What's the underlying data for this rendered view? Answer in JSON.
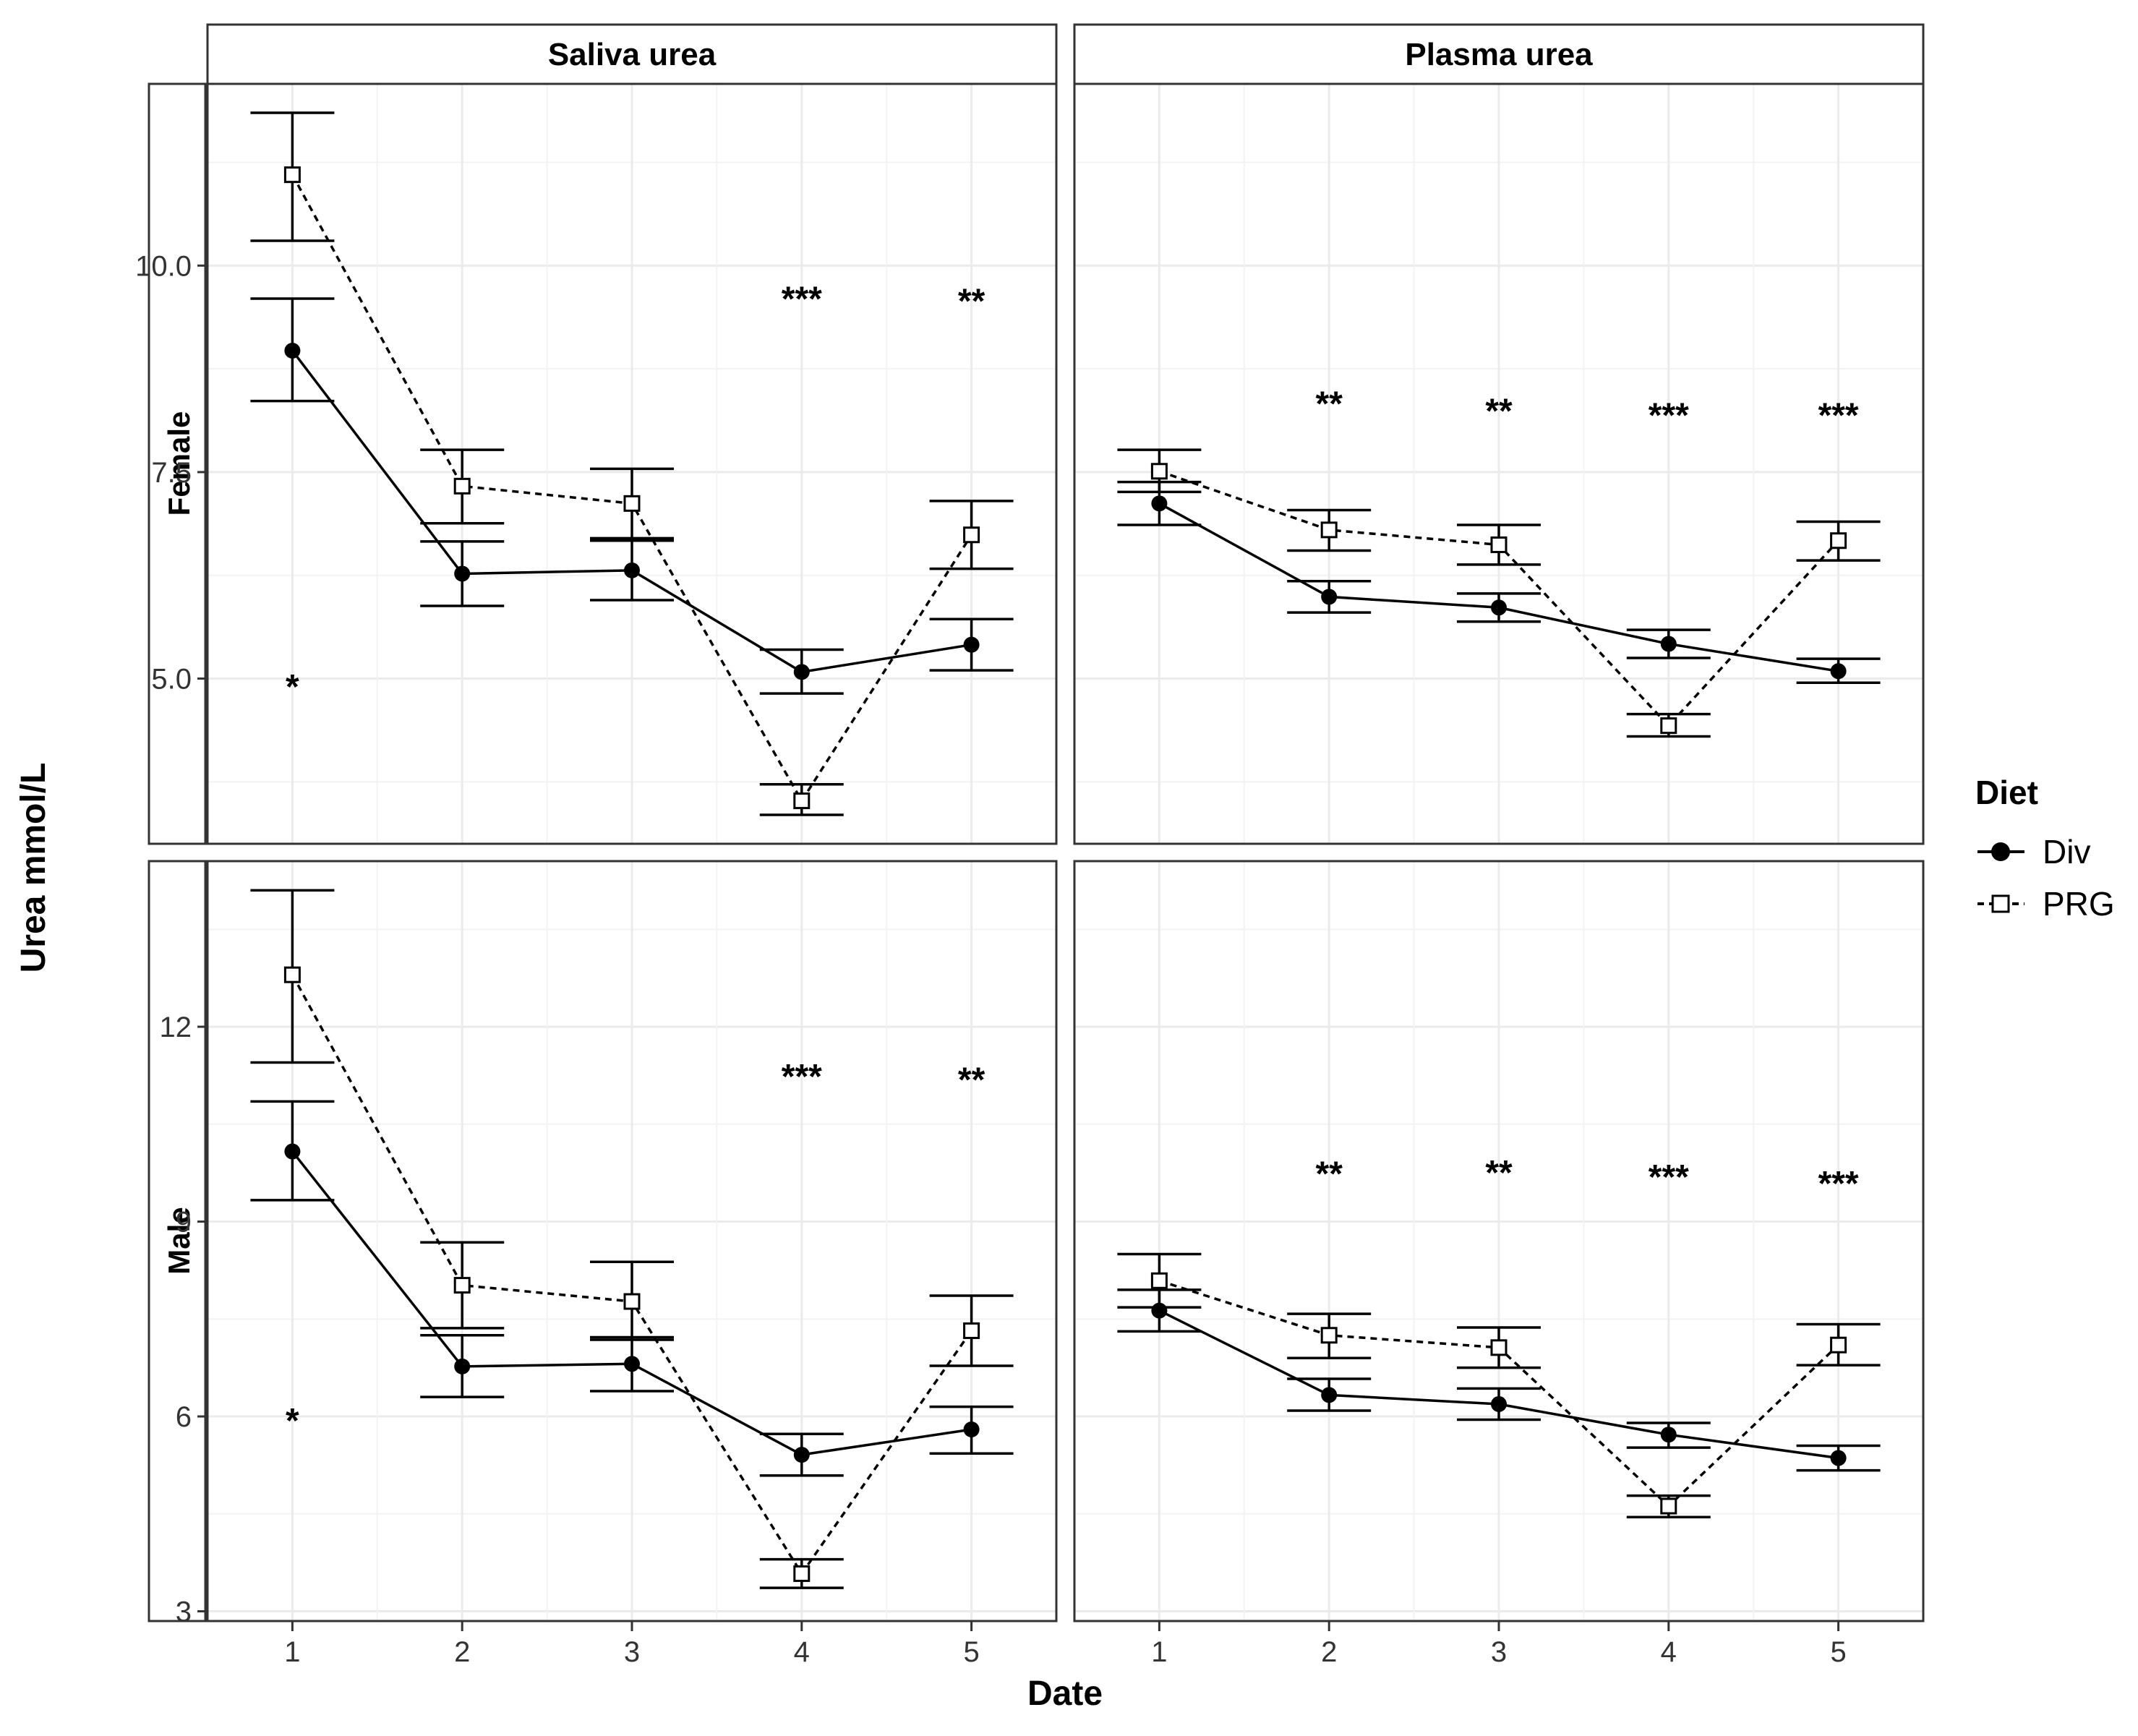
{
  "chart_data": {
    "type": "line",
    "layout": "facet-grid",
    "xlabel": "Date",
    "ylabel": "Urea mmol/L",
    "x_categories": [
      "1",
      "2",
      "3",
      "4",
      "5"
    ],
    "column_facets": [
      "Saliva urea",
      "Plasma urea"
    ],
    "row_facets": [
      "Female",
      "Male"
    ],
    "legend": {
      "title": "Diet",
      "position": "right",
      "entries": [
        {
          "name": "Div",
          "marker": "filled-circle",
          "line": "solid"
        },
        {
          "name": "PRG",
          "marker": "open-square",
          "line": "dashed"
        }
      ]
    },
    "rows": [
      {
        "name": "Female",
        "ylim": [
          3.0,
          12.2
        ],
        "yticks": [
          5.0,
          7.5,
          10.0
        ],
        "ytick_labels": [
          "5.0",
          "7.5",
          "10.0"
        ]
      },
      {
        "name": "Male",
        "ylim": [
          2.85,
          14.55
        ],
        "yticks": [
          3,
          6,
          9,
          12
        ],
        "ytick_labels": [
          "3",
          "6",
          "9",
          "12"
        ]
      }
    ],
    "panels": [
      {
        "row": "Female",
        "column": "Saliva urea",
        "series": [
          {
            "name": "Div",
            "mean": [
              8.97,
              6.27,
              6.31,
              5.08,
              5.41
            ],
            "lower": [
              8.36,
              5.88,
              5.95,
              4.82,
              5.1
            ],
            "upper": [
              9.6,
              6.66,
              6.67,
              5.35,
              5.72
            ]
          },
          {
            "name": "PRG",
            "mean": [
              11.1,
              7.33,
              7.12,
              3.52,
              6.74
            ],
            "lower": [
              10.3,
              6.88,
              6.7,
              3.35,
              6.33
            ],
            "upper": [
              11.85,
              7.77,
              7.54,
              3.72,
              7.15
            ]
          }
        ],
        "significance": [
          {
            "x": "1",
            "label": "*",
            "y": 4.95
          },
          {
            "x": "4",
            "label": "***",
            "y": 9.65
          },
          {
            "x": "5",
            "label": "**",
            "y": 9.62
          }
        ]
      },
      {
        "row": "Female",
        "column": "Plasma urea",
        "series": [
          {
            "name": "Div",
            "mean": [
              7.12,
              5.99,
              5.86,
              5.42,
              5.09
            ],
            "lower": [
              6.86,
              5.8,
              5.69,
              5.25,
              4.95
            ],
            "upper": [
              7.38,
              6.18,
              6.03,
              5.59,
              5.24
            ]
          },
          {
            "name": "PRG",
            "mean": [
              7.51,
              6.8,
              6.62,
              4.43,
              6.67
            ],
            "lower": [
              7.26,
              6.55,
              6.38,
              4.3,
              6.43
            ],
            "upper": [
              7.77,
              7.04,
              6.86,
              4.57,
              6.9
            ]
          }
        ],
        "significance": [
          {
            "x": "2",
            "label": "**",
            "y": 8.38
          },
          {
            "x": "3",
            "label": "**",
            "y": 8.29
          },
          {
            "x": "4",
            "label": "***",
            "y": 8.24
          },
          {
            "x": "5",
            "label": "***",
            "y": 8.24
          }
        ]
      },
      {
        "row": "Male",
        "column": "Saliva urea",
        "series": [
          {
            "name": "Div",
            "mean": [
              10.08,
              6.77,
              6.81,
              5.41,
              5.8
            ],
            "lower": [
              9.33,
              6.3,
              6.39,
              5.09,
              5.43
            ],
            "upper": [
              10.85,
              7.25,
              7.22,
              5.73,
              6.15
            ]
          },
          {
            "name": "PRG",
            "mean": [
              12.8,
              8.02,
              7.77,
              3.58,
              7.32
            ],
            "lower": [
              11.45,
              7.36,
              7.18,
              3.36,
              6.78
            ],
            "upper": [
              14.1,
              8.68,
              8.38,
              3.8,
              7.86
            ]
          }
        ],
        "significance": [
          {
            "x": "1",
            "label": "*",
            "y": 6.0
          },
          {
            "x": "4",
            "label": "***",
            "y": 11.3
          },
          {
            "x": "5",
            "label": "**",
            "y": 11.25
          }
        ]
      },
      {
        "row": "Male",
        "column": "Plasma urea",
        "series": [
          {
            "name": "Div",
            "mean": [
              7.63,
              6.33,
              6.19,
              5.72,
              5.36
            ],
            "lower": [
              7.31,
              6.09,
              5.95,
              5.52,
              5.17
            ],
            "upper": [
              7.95,
              6.58,
              6.43,
              5.9,
              5.55
            ]
          },
          {
            "name": "PRG",
            "mean": [
              8.09,
              7.25,
              7.06,
              4.62,
              7.1
            ],
            "lower": [
              7.68,
              6.9,
              6.75,
              4.45,
              6.79
            ],
            "upper": [
              8.5,
              7.58,
              7.37,
              4.78,
              7.42
            ]
          }
        ],
        "significance": [
          {
            "x": "2",
            "label": "**",
            "y": 9.8
          },
          {
            "x": "3",
            "label": "**",
            "y": 9.82
          },
          {
            "x": "4",
            "label": "***",
            "y": 9.75
          },
          {
            "x": "5",
            "label": "***",
            "y": 9.65
          }
        ]
      }
    ]
  }
}
